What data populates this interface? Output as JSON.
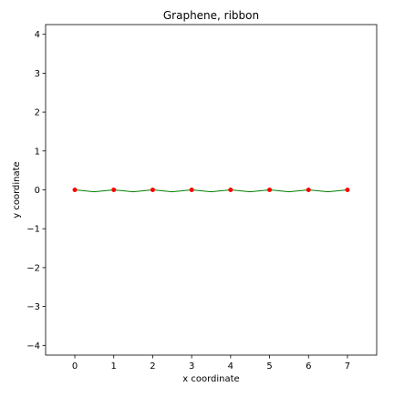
{
  "chart_data": {
    "type": "line",
    "title": "Graphene, ribbon",
    "xlabel": "x coordinate",
    "ylabel": "y coordinate",
    "xlim": [
      -0.75,
      7.75
    ],
    "ylim": [
      -4.25,
      4.25
    ],
    "x_ticks": [
      0,
      1,
      2,
      3,
      4,
      5,
      6,
      7
    ],
    "y_ticks": [
      4,
      3,
      2,
      1,
      0,
      -1,
      -2,
      -3,
      -4
    ],
    "y_tick_labels": [
      "4",
      "3",
      "2",
      "1",
      "0",
      "−1",
      "−2",
      "−3",
      "−4"
    ],
    "grid": false,
    "series": [
      {
        "type": "line",
        "color": "#008000",
        "points": [
          [
            0,
            0
          ],
          [
            0.5,
            -0.05
          ],
          [
            1,
            0
          ],
          [
            1.5,
            -0.05
          ],
          [
            2,
            0
          ],
          [
            2.5,
            -0.05
          ],
          [
            3,
            0
          ],
          [
            3.5,
            -0.05
          ],
          [
            4,
            0
          ],
          [
            4.5,
            -0.05
          ],
          [
            5,
            0
          ],
          [
            5.5,
            -0.05
          ],
          [
            6,
            0
          ],
          [
            6.5,
            -0.05
          ],
          [
            7,
            0
          ]
        ]
      },
      {
        "type": "scatter",
        "color": "#ff0000",
        "points": [
          [
            0,
            0
          ],
          [
            1,
            0
          ],
          [
            2,
            0
          ],
          [
            3,
            0
          ],
          [
            4,
            0
          ],
          [
            5,
            0
          ],
          [
            6,
            0
          ],
          [
            7,
            0
          ]
        ]
      }
    ]
  }
}
